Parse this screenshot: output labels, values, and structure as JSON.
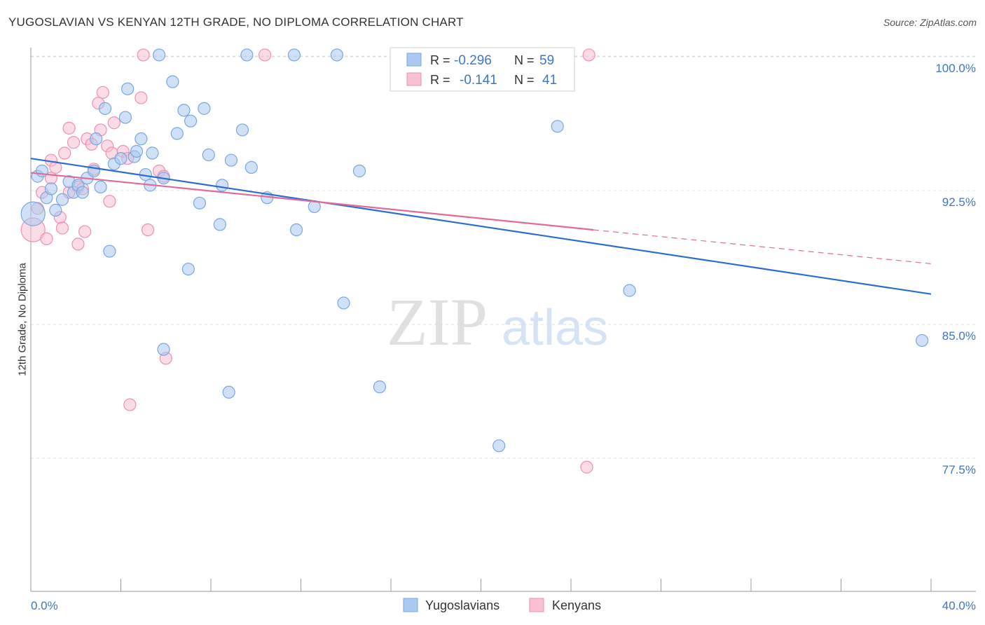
{
  "title": "YUGOSLAVIAN VS KENYAN 12TH GRADE, NO DIPLOMA CORRELATION CHART",
  "source": "Source: ZipAtlas.com",
  "watermark": {
    "zip": "ZIP",
    "atlas": "atlas"
  },
  "colors": {
    "blue_fill": "#aac8f0",
    "blue_stroke": "#7aa6e0",
    "blue_line": "#2a6dd0",
    "pink_fill": "#f8c0d2",
    "pink_stroke": "#ee90b0",
    "pink_line": "#e06a98",
    "axis_text": "#3f75c8",
    "grid": "#dddddd"
  },
  "legend": {
    "row1": {
      "r_label": "R = ",
      "r_value": "-0.296",
      "n_label": "N = ",
      "n_value": "59"
    },
    "row2": {
      "r_label": "R = ",
      "r_value": "-0.141",
      "n_label": "N = ",
      "n_value": "41"
    }
  },
  "bottom_legend": {
    "yugoslavians": "Yugoslavians",
    "kenyans": "Kenyans"
  },
  "chart_data": {
    "type": "scatter",
    "title": "YUGOSLAVIAN VS KENYAN 12TH GRADE, NO DIPLOMA CORRELATION CHART",
    "xlabel": "",
    "ylabel": "12th Grade, No Diploma",
    "xlim": [
      0,
      40
    ],
    "ylim": [
      70,
      101.5
    ],
    "x_tick_labels": [
      "0.0%",
      "40.0%"
    ],
    "y_ticks": [
      77.5,
      85.0,
      92.5,
      100.0
    ],
    "y_tick_labels": [
      "77.5%",
      "85.0%",
      "92.5%",
      "100.0%"
    ],
    "series": [
      {
        "name": "Yugoslavians",
        "R": -0.296,
        "N": 59,
        "trend": {
          "x0": 0,
          "y0": 94.3,
          "x1": 40,
          "y1": 86.7
        },
        "points": [
          [
            0.1,
            91.2,
            2
          ],
          [
            0.3,
            93.3,
            1
          ],
          [
            0.5,
            93.6,
            1
          ],
          [
            0.7,
            92.1,
            1
          ],
          [
            0.9,
            92.6,
            1
          ],
          [
            1.1,
            91.4,
            1
          ],
          [
            1.4,
            92.0,
            1
          ],
          [
            1.7,
            93.0,
            1
          ],
          [
            1.9,
            92.4,
            1
          ],
          [
            2.1,
            92.8,
            1
          ],
          [
            2.3,
            92.4,
            1
          ],
          [
            2.5,
            93.2,
            1
          ],
          [
            2.8,
            93.6,
            1
          ],
          [
            2.9,
            95.4,
            1
          ],
          [
            3.1,
            92.7,
            1
          ],
          [
            3.3,
            97.1,
            1
          ],
          [
            3.5,
            89.1,
            1
          ],
          [
            3.7,
            94.0,
            1
          ],
          [
            4.0,
            94.3,
            1
          ],
          [
            4.2,
            96.6,
            1
          ],
          [
            4.3,
            98.2,
            1
          ],
          [
            4.6,
            94.4,
            1
          ],
          [
            4.7,
            94.7,
            1
          ],
          [
            4.9,
            95.4,
            1
          ],
          [
            5.1,
            93.4,
            1
          ],
          [
            5.3,
            92.8,
            1
          ],
          [
            5.4,
            94.6,
            1
          ],
          [
            5.7,
            100.1,
            1
          ],
          [
            5.9,
            83.6,
            1
          ],
          [
            5.9,
            93.2,
            1
          ],
          [
            6.3,
            98.6,
            1
          ],
          [
            6.5,
            95.7,
            1
          ],
          [
            6.8,
            97.0,
            1
          ],
          [
            7.0,
            88.1,
            1
          ],
          [
            7.1,
            96.4,
            1
          ],
          [
            7.5,
            91.8,
            1
          ],
          [
            7.7,
            97.1,
            1
          ],
          [
            7.9,
            94.5,
            1
          ],
          [
            8.4,
            90.6,
            1
          ],
          [
            8.5,
            92.8,
            1
          ],
          [
            8.9,
            94.2,
            1
          ],
          [
            8.8,
            81.2,
            1
          ],
          [
            9.4,
            95.9,
            1
          ],
          [
            9.6,
            100.1,
            1
          ],
          [
            9.8,
            93.8,
            1
          ],
          [
            10.5,
            92.1,
            1
          ],
          [
            11.7,
            100.1,
            1
          ],
          [
            11.8,
            90.3,
            1
          ],
          [
            12.6,
            91.6,
            1
          ],
          [
            13.6,
            100.1,
            1
          ],
          [
            13.9,
            86.2,
            1
          ],
          [
            14.6,
            93.6,
            1
          ],
          [
            15.5,
            81.5,
            1
          ],
          [
            20.8,
            78.2,
            1
          ],
          [
            23.4,
            96.1,
            1
          ],
          [
            26.6,
            86.9,
            1
          ],
          [
            39.6,
            84.1,
            1
          ]
        ]
      },
      {
        "name": "Kenyans",
        "R": -0.141,
        "N": 41,
        "trend_solid": {
          "x0": 0,
          "y0": 93.5,
          "x1": 25,
          "y1": 90.3
        },
        "trend_dashed": {
          "x0": 25,
          "y0": 90.3,
          "x1": 40,
          "y1": 88.4
        },
        "points": [
          [
            0.1,
            90.3,
            2
          ],
          [
            0.3,
            91.5,
            1
          ],
          [
            0.5,
            92.4,
            1
          ],
          [
            0.7,
            89.8,
            1
          ],
          [
            0.9,
            93.2,
            1
          ],
          [
            0.9,
            94.2,
            1
          ],
          [
            1.1,
            93.8,
            1
          ],
          [
            1.3,
            91.0,
            1
          ],
          [
            1.4,
            90.4,
            1
          ],
          [
            1.5,
            94.6,
            1
          ],
          [
            1.7,
            92.4,
            1
          ],
          [
            1.7,
            96.0,
            1
          ],
          [
            1.9,
            95.2,
            1
          ],
          [
            2.1,
            92.7,
            1
          ],
          [
            2.1,
            89.5,
            1
          ],
          [
            2.3,
            92.6,
            1
          ],
          [
            2.4,
            90.2,
            1
          ],
          [
            2.5,
            95.4,
            1
          ],
          [
            2.7,
            95.1,
            1
          ],
          [
            2.8,
            93.7,
            1
          ],
          [
            3.0,
            97.4,
            1
          ],
          [
            3.1,
            95.9,
            1
          ],
          [
            3.2,
            98.0,
            1
          ],
          [
            3.4,
            95.0,
            1
          ],
          [
            3.5,
            91.9,
            1
          ],
          [
            3.6,
            94.6,
            1
          ],
          [
            3.7,
            96.3,
            1
          ],
          [
            4.1,
            94.7,
            1
          ],
          [
            4.3,
            94.3,
            1
          ],
          [
            4.4,
            80.5,
            1
          ],
          [
            4.9,
            97.7,
            1
          ],
          [
            5.0,
            100.1,
            1
          ],
          [
            5.2,
            90.3,
            1
          ],
          [
            5.7,
            93.6,
            1
          ],
          [
            5.9,
            93.3,
            1
          ],
          [
            6.0,
            83.1,
            1
          ],
          [
            10.4,
            100.1,
            1
          ],
          [
            24.8,
            100.1,
            1
          ],
          [
            24.7,
            77.0,
            1
          ]
        ]
      }
    ]
  }
}
